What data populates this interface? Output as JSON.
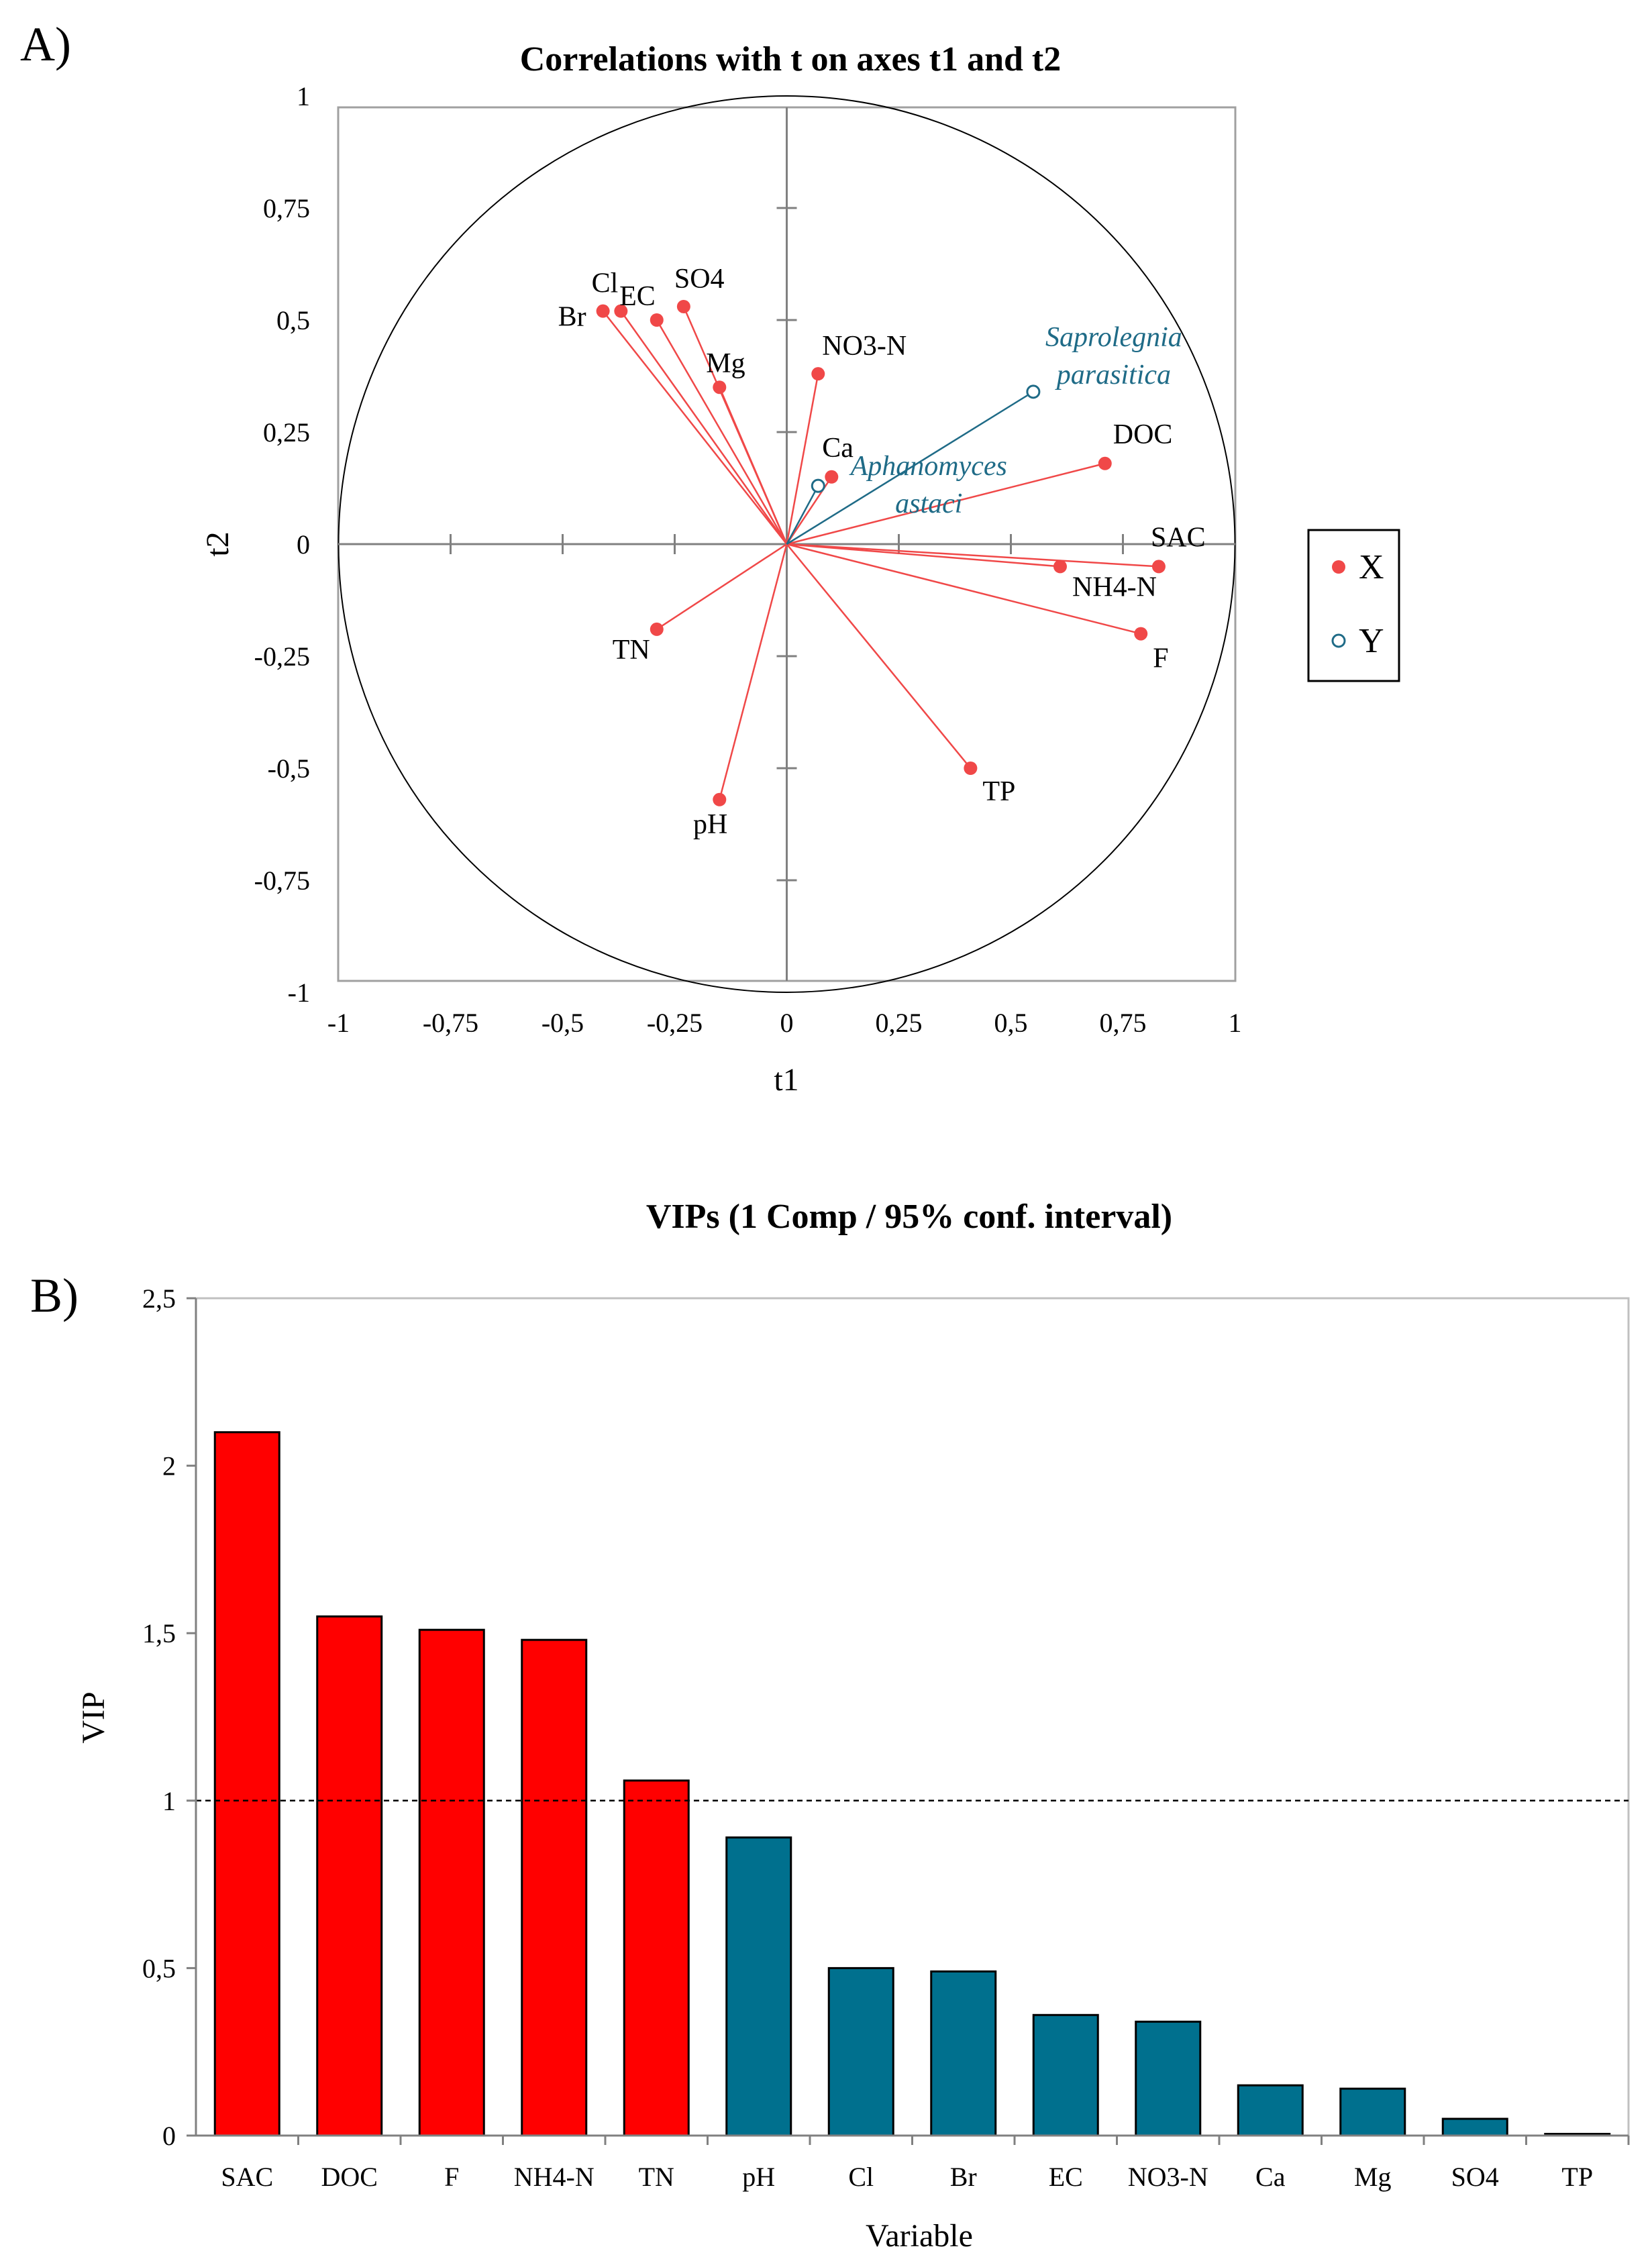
{
  "chart_data": [
    {
      "type": "scatter",
      "panel_label": "A)",
      "title": "Correlations with t on axes t1 and t2",
      "xlabel": "t1",
      "ylabel": "t2",
      "xlim": [
        -1,
        1
      ],
      "ylim": [
        -1,
        1
      ],
      "xticks": [
        "-1",
        "-0,75",
        "-0,5",
        "-0,25",
        "0",
        "0,25",
        "0,5",
        "0,75",
        "1"
      ],
      "yticks": [
        "1",
        "0,75",
        "0,5",
        "0,25",
        "0",
        "-0,25",
        "-0,5",
        "-0,75",
        "-1"
      ],
      "colors": {
        "X": "#f04848",
        "Y": "#1f6b87"
      },
      "legend": {
        "position": "right",
        "entries": [
          {
            "name": "X",
            "marker": "filled"
          },
          {
            "name": "Y",
            "marker": "open"
          }
        ]
      },
      "series": [
        {
          "name": "X",
          "points": [
            {
              "label": "Br",
              "x": -0.41,
              "y": 0.52
            },
            {
              "label": "Cl",
              "x": -0.37,
              "y": 0.52
            },
            {
              "label": "EC",
              "x": -0.29,
              "y": 0.5
            },
            {
              "label": "SO4",
              "x": -0.23,
              "y": 0.53
            },
            {
              "label": "Mg",
              "x": -0.15,
              "y": 0.35
            },
            {
              "label": "NO3-N",
              "x": 0.07,
              "y": 0.38
            },
            {
              "label": "Ca",
              "x": 0.1,
              "y": 0.15
            },
            {
              "label": "DOC",
              "x": 0.71,
              "y": 0.18
            },
            {
              "label": "SAC",
              "x": 0.83,
              "y": -0.05
            },
            {
              "label": "NH4-N",
              "x": 0.61,
              "y": -0.05
            },
            {
              "label": "F",
              "x": 0.79,
              "y": -0.2
            },
            {
              "label": "TN",
              "x": -0.29,
              "y": -0.19
            },
            {
              "label": "TP",
              "x": 0.41,
              "y": -0.5
            },
            {
              "label": "pH",
              "x": -0.15,
              "y": -0.57
            }
          ]
        },
        {
          "name": "Y",
          "points": [
            {
              "label": "Saprolegnia parasitica",
              "line1": "Saprolegnia",
              "line2": "parasitica",
              "x": 0.55,
              "y": 0.34
            },
            {
              "label": "Aphanomyces astaci",
              "line1": "Aphanomyces",
              "line2": "astaci",
              "x": 0.07,
              "y": 0.13
            }
          ]
        }
      ]
    },
    {
      "type": "bar",
      "panel_label": "B)",
      "title": "VIPs (1 Comp / 95% conf. interval)",
      "xlabel": "Variable",
      "ylabel": "VIP",
      "ylim": [
        0,
        2.5
      ],
      "yticks": [
        "0",
        "0,5",
        "1",
        "1,5",
        "2",
        "2,5"
      ],
      "reference_line": 1,
      "colors": {
        "above": "#ff0000",
        "below": "#00708e"
      },
      "categories": [
        "SAC",
        "DOC",
        "F",
        "NH4-N",
        "TN",
        "pH",
        "Cl",
        "Br",
        "EC",
        "NO3-N",
        "Ca",
        "Mg",
        "SO4",
        "TP"
      ],
      "values": [
        2.1,
        1.55,
        1.51,
        1.48,
        1.06,
        0.89,
        0.5,
        0.49,
        0.36,
        0.34,
        0.15,
        0.14,
        0.05,
        0.005
      ]
    }
  ]
}
